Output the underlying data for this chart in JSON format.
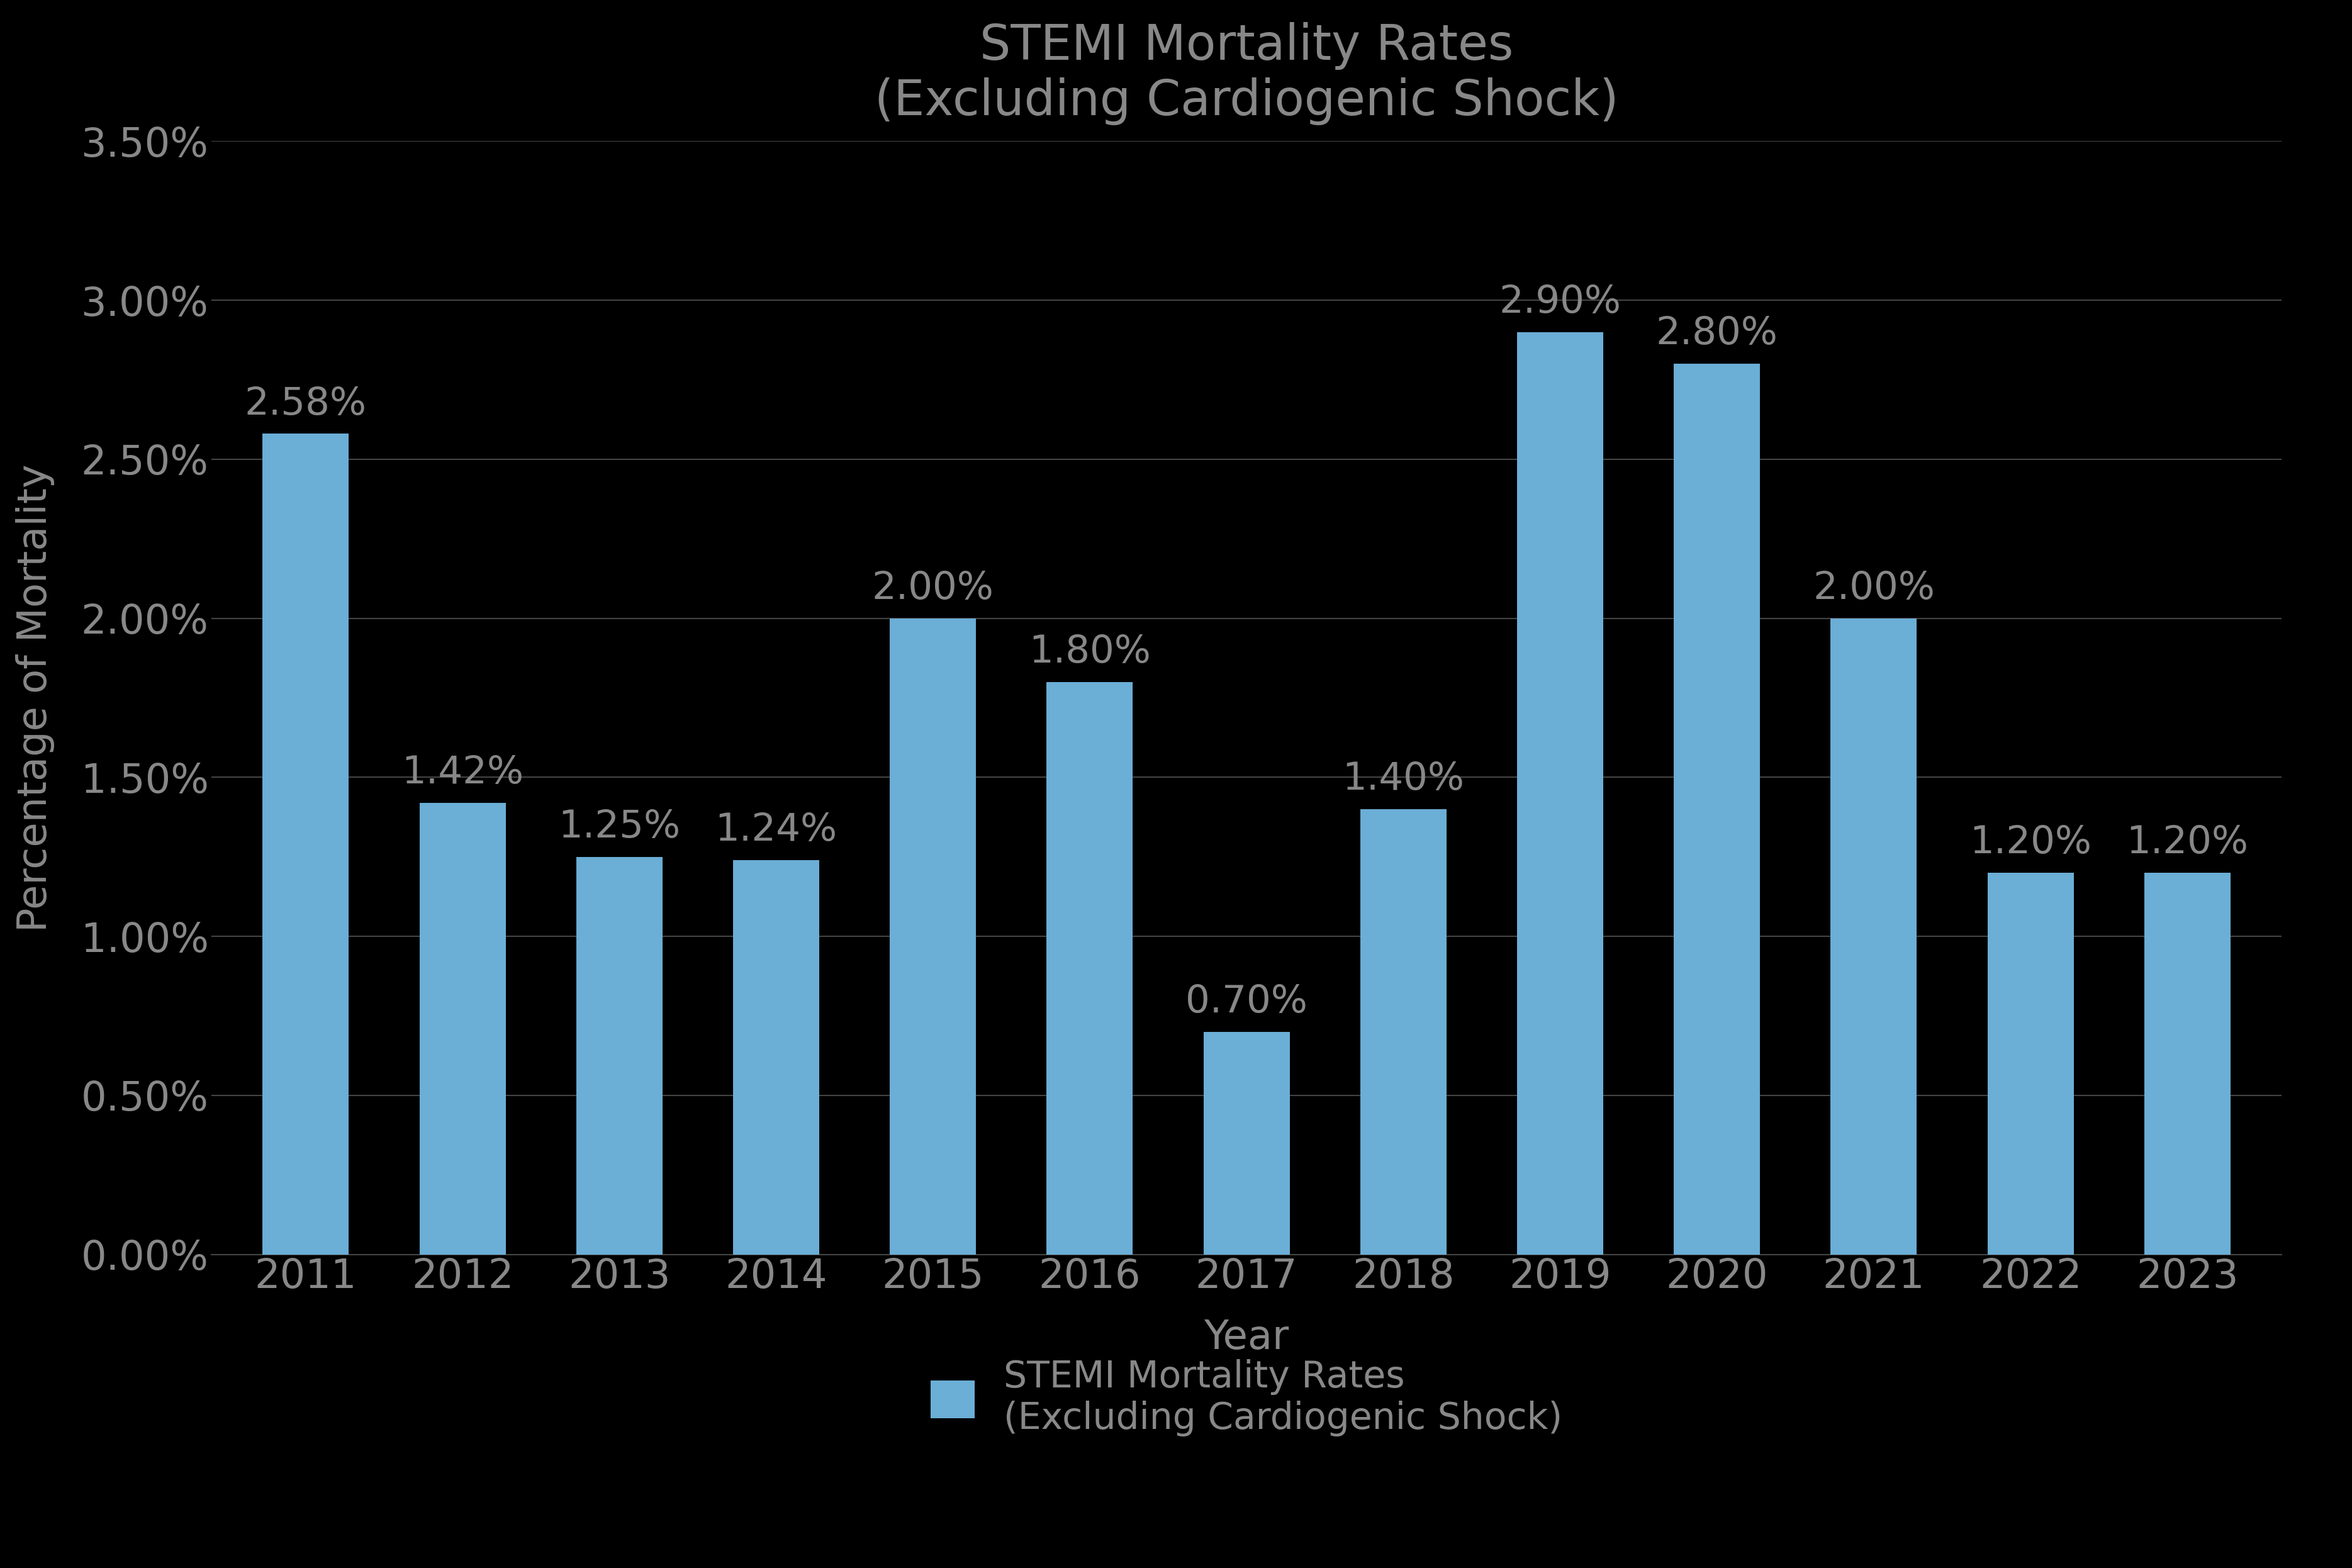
{
  "title": "STEMI Mortality Rates\n(Excluding Cardiogenic Shock)",
  "xlabel": "Year",
  "ylabel": "Percentage of Mortality",
  "years": [
    2011,
    2012,
    2013,
    2014,
    2015,
    2016,
    2017,
    2018,
    2019,
    2020,
    2021,
    2022,
    2023
  ],
  "values": [
    0.0258,
    0.0142,
    0.0125,
    0.0124,
    0.02,
    0.018,
    0.007,
    0.014,
    0.029,
    0.028,
    0.02,
    0.012,
    0.012
  ],
  "labels": [
    "2.58%",
    "1.42%",
    "1.25%",
    "1.24%",
    "2.00%",
    "1.80%",
    "0.70%",
    "1.40%",
    "2.90%",
    "2.80%",
    "2.00%",
    "1.20%",
    "1.20%"
  ],
  "bar_color": "#6baed6",
  "background_color": "#000000",
  "text_color": "#888888",
  "grid_color": "#444444",
  "ylim": [
    0,
    0.035
  ],
  "yticks": [
    0.0,
    0.005,
    0.01,
    0.015,
    0.02,
    0.025,
    0.03,
    0.035
  ],
  "ytick_labels": [
    "0.00%",
    "0.50%",
    "1.00%",
    "1.50%",
    "2.00%",
    "2.50%",
    "3.00%",
    "3.50%"
  ],
  "legend_label": "STEMI Mortality Rates\n(Excluding Cardiogenic Shock)",
  "title_fontsize": 56,
  "label_fontsize": 46,
  "tick_fontsize": 46,
  "bar_label_fontsize": 44,
  "legend_fontsize": 42,
  "bar_width": 0.55
}
